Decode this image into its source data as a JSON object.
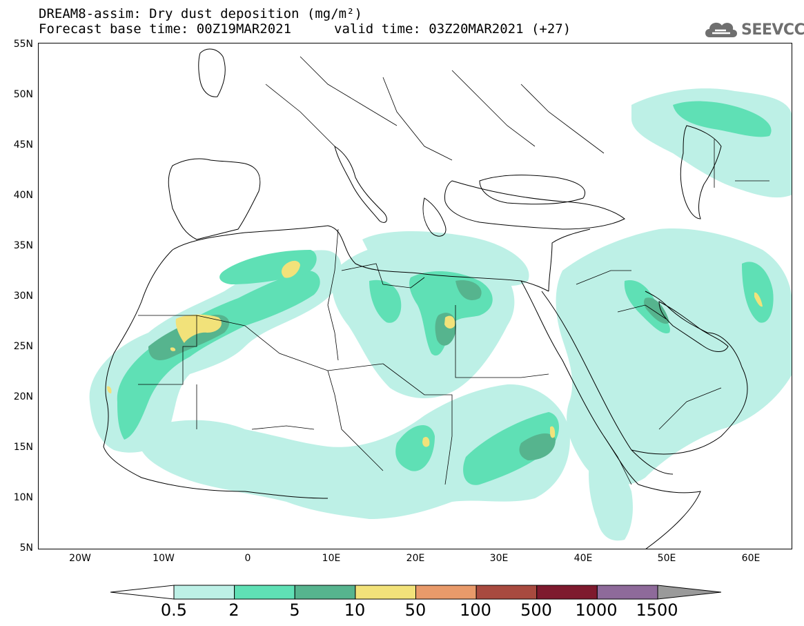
{
  "header": {
    "title_line1": "DREAM8-assim: Dry dust deposition (mg/m²)",
    "base_time": "Forecast base time: 00Z19MAR2021",
    "valid_time": "valid time: 03Z20MAR2021 (+27)"
  },
  "logo": {
    "text": "SEEVCCC",
    "icon": "cloud-icon"
  },
  "map": {
    "lat_labels": [
      "55N",
      "50N",
      "45N",
      "40N",
      "35N",
      "30N",
      "25N",
      "20N",
      "15N",
      "10N",
      "5N"
    ],
    "lon_labels": [
      "20W",
      "10W",
      "0",
      "10E",
      "20E",
      "30E",
      "40E",
      "50E",
      "60E"
    ],
    "lat_range": [
      5,
      55
    ],
    "lon_range": [
      -25,
      65
    ]
  },
  "legend": {
    "labels": [
      "0.5",
      "2",
      "5",
      "10",
      "50",
      "100",
      "500",
      "1000",
      "1500"
    ],
    "colors": [
      "#ffffff",
      "#bdf0e6",
      "#5fe0b5",
      "#56b48e",
      "#f2e27a",
      "#e89a6a",
      "#a84a3f",
      "#7e1a2e",
      "#8e6a9a",
      "#9a9a9a"
    ]
  }
}
